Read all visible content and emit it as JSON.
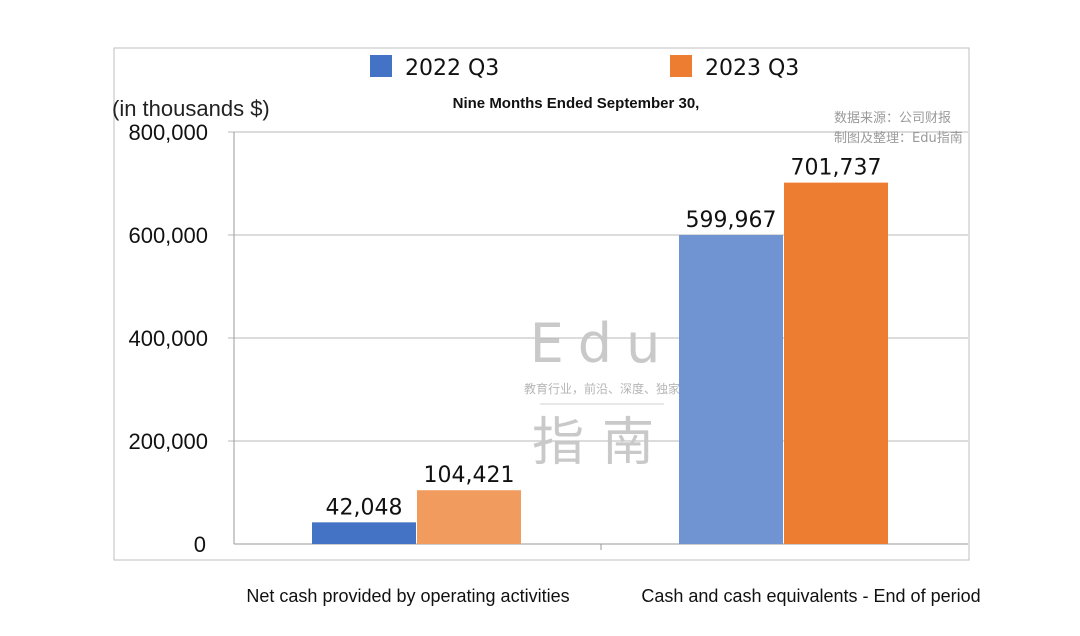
{
  "chart_data": {
    "type": "bar",
    "title": "Nine Months Ended September 30,",
    "ylabel": "(in thousands $)",
    "xlabel": "",
    "categories": [
      "Net cash provided by operating activities",
      "Cash and cash equivalents - End of period"
    ],
    "series": [
      {
        "name": "2022 Q3",
        "values": [
          42048,
          599967
        ],
        "colors": [
          "#4472c4",
          "#7094d1"
        ]
      },
      {
        "name": "2023 Q3",
        "values": [
          104421,
          701737
        ],
        "colors": [
          "#f19b5f",
          "#ed7d31"
        ]
      }
    ],
    "value_labels": [
      [
        "42,048",
        "599,967"
      ],
      [
        "104,421",
        "701,737"
      ]
    ],
    "ylim": [
      0,
      800000
    ],
    "yticks": [
      0,
      200000,
      400000,
      600000,
      800000
    ],
    "ytick_labels": [
      "0",
      "200,000",
      "400,000",
      "600,000",
      "800,000"
    ],
    "grid": true,
    "legend_position": "top"
  },
  "source_note": {
    "line1": "数据来源：公司财报",
    "line2": "制图及整理：Edu指南"
  },
  "watermark": {
    "brand": "Edu",
    "tagline": "教育行业，前沿、深度、独家",
    "brand_cn": "指南"
  },
  "colors": {
    "grid": "#b8b8b8",
    "frame": "#bfbfbf"
  }
}
